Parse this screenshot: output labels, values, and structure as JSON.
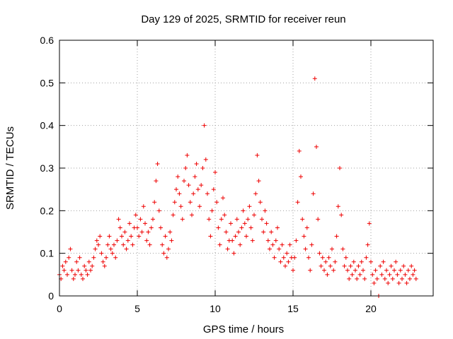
{
  "chart_data": {
    "type": "scatter",
    "title": "Day 129 of 2025, SRMTID for receiver reun",
    "xlabel": "GPS time / hours",
    "ylabel": "SRMTID / TECUs",
    "xlim": [
      0,
      24
    ],
    "ylim": [
      0,
      0.6
    ],
    "xticks": [
      "0",
      "5",
      "10",
      "15",
      "20"
    ],
    "xtick_values": [
      0,
      5,
      10,
      15,
      20
    ],
    "yticks": [
      "0",
      "0.1",
      "0.2",
      "0.3",
      "0.4",
      "0.5",
      "0.6"
    ],
    "ytick_values": [
      0,
      0.1,
      0.2,
      0.3,
      0.4,
      0.5,
      0.6
    ],
    "grid": true,
    "marker": "+",
    "color": "#ee0000",
    "series": [
      {
        "name": "SRMTID",
        "points": [
          [
            0.0,
            0.05
          ],
          [
            0.1,
            0.04
          ],
          [
            0.2,
            0.07
          ],
          [
            0.3,
            0.06
          ],
          [
            0.4,
            0.08
          ],
          [
            0.5,
            0.05
          ],
          [
            0.6,
            0.09
          ],
          [
            0.7,
            0.11
          ],
          [
            0.8,
            0.06
          ],
          [
            0.9,
            0.04
          ],
          [
            1.0,
            0.05
          ],
          [
            1.1,
            0.08
          ],
          [
            1.2,
            0.06
          ],
          [
            1.3,
            0.09
          ],
          [
            1.4,
            0.05
          ],
          [
            1.5,
            0.04
          ],
          [
            1.6,
            0.07
          ],
          [
            1.7,
            0.06
          ],
          [
            1.8,
            0.05
          ],
          [
            1.9,
            0.08
          ],
          [
            2.0,
            0.06
          ],
          [
            2.1,
            0.07
          ],
          [
            2.2,
            0.09
          ],
          [
            2.3,
            0.11
          ],
          [
            2.4,
            0.13
          ],
          [
            2.5,
            0.12
          ],
          [
            2.6,
            0.14
          ],
          [
            2.7,
            0.1
          ],
          [
            2.8,
            0.08
          ],
          [
            2.9,
            0.07
          ],
          [
            3.0,
            0.09
          ],
          [
            3.1,
            0.12
          ],
          [
            3.2,
            0.14
          ],
          [
            3.3,
            0.11
          ],
          [
            3.4,
            0.1
          ],
          [
            3.5,
            0.12
          ],
          [
            3.6,
            0.09
          ],
          [
            3.7,
            0.13
          ],
          [
            3.8,
            0.18
          ],
          [
            3.9,
            0.16
          ],
          [
            4.0,
            0.14
          ],
          [
            4.1,
            0.12
          ],
          [
            4.2,
            0.15
          ],
          [
            4.3,
            0.11
          ],
          [
            4.4,
            0.13
          ],
          [
            4.5,
            0.17
          ],
          [
            4.6,
            0.14
          ],
          [
            4.7,
            0.12
          ],
          [
            4.8,
            0.16
          ],
          [
            4.9,
            0.19
          ],
          [
            5.0,
            0.16
          ],
          [
            5.1,
            0.14
          ],
          [
            5.2,
            0.18
          ],
          [
            5.3,
            0.15
          ],
          [
            5.4,
            0.21
          ],
          [
            5.5,
            0.17
          ],
          [
            5.6,
            0.13
          ],
          [
            5.7,
            0.15
          ],
          [
            5.8,
            0.12
          ],
          [
            5.9,
            0.16
          ],
          [
            6.0,
            0.18
          ],
          [
            6.1,
            0.22
          ],
          [
            6.2,
            0.27
          ],
          [
            6.3,
            0.31
          ],
          [
            6.4,
            0.2
          ],
          [
            6.5,
            0.16
          ],
          [
            6.6,
            0.12
          ],
          [
            6.7,
            0.1
          ],
          [
            6.8,
            0.14
          ],
          [
            6.9,
            0.09
          ],
          [
            7.0,
            0.11
          ],
          [
            7.1,
            0.15
          ],
          [
            7.2,
            0.13
          ],
          [
            7.3,
            0.19
          ],
          [
            7.4,
            0.22
          ],
          [
            7.5,
            0.25
          ],
          [
            7.6,
            0.28
          ],
          [
            7.7,
            0.24
          ],
          [
            7.8,
            0.21
          ],
          [
            7.9,
            0.18
          ],
          [
            8.0,
            0.27
          ],
          [
            8.1,
            0.3
          ],
          [
            8.2,
            0.33
          ],
          [
            8.3,
            0.26
          ],
          [
            8.4,
            0.22
          ],
          [
            8.5,
            0.19
          ],
          [
            8.6,
            0.24
          ],
          [
            8.7,
            0.28
          ],
          [
            8.8,
            0.31
          ],
          [
            8.9,
            0.25
          ],
          [
            9.0,
            0.21
          ],
          [
            9.1,
            0.26
          ],
          [
            9.2,
            0.3
          ],
          [
            9.3,
            0.4
          ],
          [
            9.4,
            0.32
          ],
          [
            9.5,
            0.24
          ],
          [
            9.6,
            0.18
          ],
          [
            9.7,
            0.14
          ],
          [
            9.8,
            0.2
          ],
          [
            9.9,
            0.25
          ],
          [
            10.0,
            0.29
          ],
          [
            10.1,
            0.22
          ],
          [
            10.2,
            0.16
          ],
          [
            10.3,
            0.12
          ],
          [
            10.4,
            0.18
          ],
          [
            10.5,
            0.23
          ],
          [
            10.6,
            0.19
          ],
          [
            10.7,
            0.15
          ],
          [
            10.8,
            0.11
          ],
          [
            10.9,
            0.13
          ],
          [
            11.0,
            0.17
          ],
          [
            11.1,
            0.13
          ],
          [
            11.2,
            0.1
          ],
          [
            11.3,
            0.14
          ],
          [
            11.4,
            0.18
          ],
          [
            11.5,
            0.15
          ],
          [
            11.6,
            0.12
          ],
          [
            11.7,
            0.16
          ],
          [
            11.8,
            0.2
          ],
          [
            11.9,
            0.17
          ],
          [
            12.0,
            0.14
          ],
          [
            12.1,
            0.18
          ],
          [
            12.2,
            0.21
          ],
          [
            12.3,
            0.16
          ],
          [
            12.4,
            0.13
          ],
          [
            12.5,
            0.19
          ],
          [
            12.6,
            0.24
          ],
          [
            12.7,
            0.33
          ],
          [
            12.8,
            0.27
          ],
          [
            12.9,
            0.22
          ],
          [
            13.0,
            0.18
          ],
          [
            13.1,
            0.15
          ],
          [
            13.2,
            0.2
          ],
          [
            13.3,
            0.17
          ],
          [
            13.4,
            0.13
          ],
          [
            13.5,
            0.11
          ],
          [
            13.6,
            0.15
          ],
          [
            13.7,
            0.12
          ],
          [
            13.8,
            0.09
          ],
          [
            13.9,
            0.13
          ],
          [
            14.0,
            0.16
          ],
          [
            14.1,
            0.11
          ],
          [
            14.2,
            0.08
          ],
          [
            14.3,
            0.12
          ],
          [
            14.4,
            0.09
          ],
          [
            14.5,
            0.07
          ],
          [
            14.6,
            0.1
          ],
          [
            14.7,
            0.08
          ],
          [
            14.8,
            0.12
          ],
          [
            14.9,
            0.09
          ],
          [
            15.0,
            0.06
          ],
          [
            15.1,
            0.09
          ],
          [
            15.2,
            0.13
          ],
          [
            15.3,
            0.22
          ],
          [
            15.4,
            0.34
          ],
          [
            15.5,
            0.28
          ],
          [
            15.6,
            0.18
          ],
          [
            15.7,
            0.14
          ],
          [
            15.8,
            0.11
          ],
          [
            15.9,
            0.16
          ],
          [
            16.0,
            0.09
          ],
          [
            16.1,
            0.06
          ],
          [
            16.2,
            0.12
          ],
          [
            16.3,
            0.24
          ],
          [
            16.4,
            0.51
          ],
          [
            16.5,
            0.35
          ],
          [
            16.6,
            0.18
          ],
          [
            16.7,
            0.1
          ],
          [
            16.8,
            0.07
          ],
          [
            16.9,
            0.09
          ],
          [
            17.0,
            0.06
          ],
          [
            17.1,
            0.08
          ],
          [
            17.2,
            0.05
          ],
          [
            17.3,
            0.09
          ],
          [
            17.4,
            0.07
          ],
          [
            17.5,
            0.11
          ],
          [
            17.6,
            0.06
          ],
          [
            17.7,
            0.08
          ],
          [
            17.8,
            0.14
          ],
          [
            17.9,
            0.21
          ],
          [
            18.0,
            0.3
          ],
          [
            18.1,
            0.19
          ],
          [
            18.2,
            0.11
          ],
          [
            18.3,
            0.07
          ],
          [
            18.4,
            0.09
          ],
          [
            18.5,
            0.06
          ],
          [
            18.6,
            0.04
          ],
          [
            18.7,
            0.07
          ],
          [
            18.8,
            0.05
          ],
          [
            18.9,
            0.08
          ],
          [
            19.0,
            0.06
          ],
          [
            19.1,
            0.04
          ],
          [
            19.2,
            0.07
          ],
          [
            19.3,
            0.05
          ],
          [
            19.4,
            0.08
          ],
          [
            19.5,
            0.06
          ],
          [
            19.6,
            0.04
          ],
          [
            19.7,
            0.09
          ],
          [
            19.8,
            0.12
          ],
          [
            19.9,
            0.17
          ],
          [
            20.0,
            0.08
          ],
          [
            20.1,
            0.05
          ],
          [
            20.2,
            0.03
          ],
          [
            20.3,
            0.06
          ],
          [
            20.4,
            0.04
          ],
          [
            20.5,
            0.0
          ],
          [
            20.6,
            0.07
          ],
          [
            20.7,
            0.05
          ],
          [
            20.8,
            0.08
          ],
          [
            20.9,
            0.04
          ],
          [
            21.0,
            0.06
          ],
          [
            21.1,
            0.03
          ],
          [
            21.2,
            0.05
          ],
          [
            21.3,
            0.07
          ],
          [
            21.4,
            0.04
          ],
          [
            21.5,
            0.06
          ],
          [
            21.6,
            0.08
          ],
          [
            21.7,
            0.05
          ],
          [
            21.8,
            0.03
          ],
          [
            21.9,
            0.06
          ],
          [
            22.0,
            0.04
          ],
          [
            22.1,
            0.07
          ],
          [
            22.2,
            0.05
          ],
          [
            22.3,
            0.03
          ],
          [
            22.4,
            0.06
          ],
          [
            22.5,
            0.04
          ],
          [
            22.6,
            0.07
          ],
          [
            22.7,
            0.05
          ],
          [
            22.8,
            0.06
          ],
          [
            22.9,
            0.04
          ]
        ]
      }
    ]
  }
}
